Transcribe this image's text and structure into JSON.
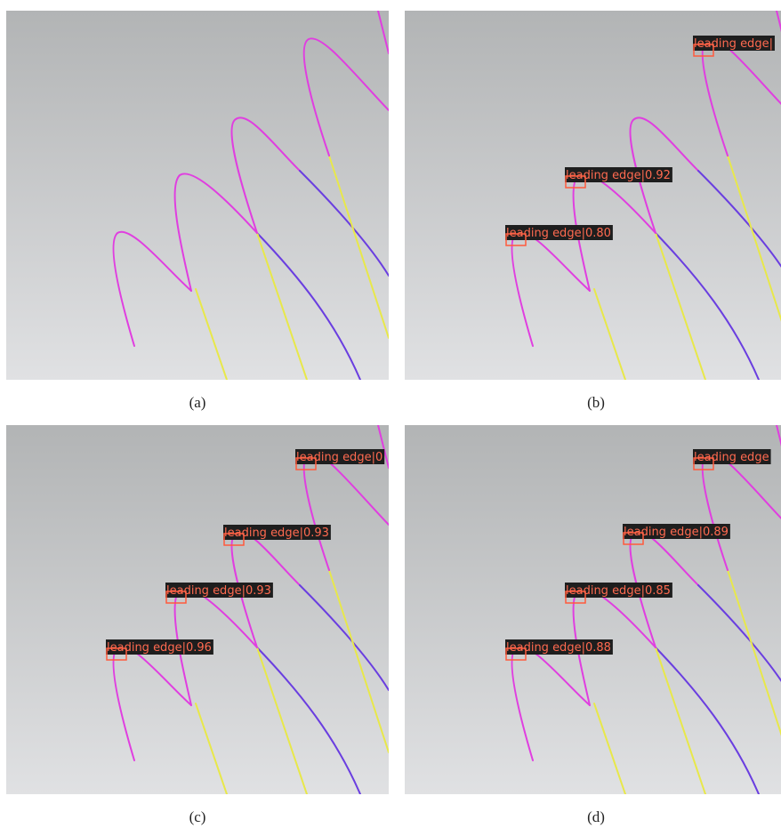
{
  "panels": [
    {
      "caption": "(a)",
      "detections": []
    },
    {
      "caption": "(b)",
      "detections": [
        {
          "label": "leading edge|"
        },
        {
          "label": "leading edge|0.92"
        },
        {
          "label": "leading edge|0.80"
        }
      ]
    },
    {
      "caption": "(c)",
      "detections": [
        {
          "label": "leading edge|0"
        },
        {
          "label": "leading edge|0.93"
        },
        {
          "label": "leading edge|0.93"
        },
        {
          "label": "leading edge|0.96"
        }
      ]
    },
    {
      "caption": "(d)",
      "detections": [
        {
          "label": "leading edge"
        },
        {
          "label": "leading edge|0.89"
        },
        {
          "label": "leading edge|0.85"
        },
        {
          "label": "leading edge|0.88"
        }
      ]
    }
  ]
}
